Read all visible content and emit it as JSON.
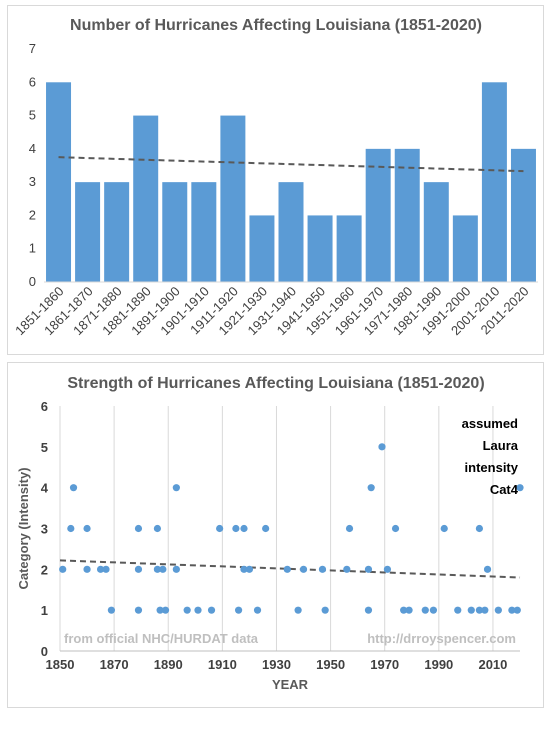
{
  "chart_data": [
    {
      "type": "bar",
      "title": "Number of Hurricanes Affecting Louisiana (1851-2020)",
      "categories": [
        "1851-1860",
        "1861-1870",
        "1871-1880",
        "1881-1890",
        "1891-1900",
        "1901-1910",
        "1911-1920",
        "1921-1930",
        "1931-1940",
        "1941-1950",
        "1951-1960",
        "1961-1970",
        "1971-1980",
        "1981-1990",
        "1991-2000",
        "2001-2010",
        "2011-2020"
      ],
      "values": [
        6,
        3,
        3,
        5,
        3,
        3,
        5,
        2,
        3,
        2,
        2,
        4,
        4,
        3,
        2,
        6,
        4
      ],
      "ylim": [
        0,
        7
      ],
      "yticks": [
        0,
        1,
        2,
        3,
        4,
        5,
        6,
        7
      ],
      "trendline": {
        "style": "dashed",
        "start": 3.75,
        "end": 3.33
      },
      "colors": {
        "bar": "#5b9bd5",
        "trend": "#595959"
      }
    },
    {
      "type": "scatter",
      "title": "Strength of Hurricanes Affecting Louisiana (1851-2020)",
      "xlabel": "YEAR",
      "ylabel": "Category (Intensity)",
      "xlim": [
        1850,
        2020
      ],
      "ylim": [
        0,
        6
      ],
      "xticks": [
        1850,
        1870,
        1890,
        1910,
        1930,
        1950,
        1970,
        1990,
        2010
      ],
      "yticks": [
        0,
        1,
        2,
        3,
        4,
        5,
        6
      ],
      "grid": "x-vertical",
      "points": [
        [
          1851,
          2
        ],
        [
          1854,
          3
        ],
        [
          1855,
          4
        ],
        [
          1860,
          3
        ],
        [
          1860,
          2
        ],
        [
          1865,
          2
        ],
        [
          1867,
          2
        ],
        [
          1869,
          1
        ],
        [
          1879,
          2
        ],
        [
          1879,
          3
        ],
        [
          1879,
          1
        ],
        [
          1886,
          3
        ],
        [
          1886,
          2
        ],
        [
          1887,
          1
        ],
        [
          1888,
          2
        ],
        [
          1889,
          1
        ],
        [
          1893,
          4
        ],
        [
          1893,
          2
        ],
        [
          1897,
          1
        ],
        [
          1901,
          1
        ],
        [
          1906,
          1
        ],
        [
          1909,
          3
        ],
        [
          1915,
          3
        ],
        [
          1916,
          1
        ],
        [
          1918,
          2
        ],
        [
          1918,
          3
        ],
        [
          1920,
          2
        ],
        [
          1923,
          1
        ],
        [
          1926,
          3
        ],
        [
          1934,
          2
        ],
        [
          1938,
          1
        ],
        [
          1940,
          2
        ],
        [
          1947,
          2
        ],
        [
          1948,
          1
        ],
        [
          1956,
          2
        ],
        [
          1957,
          3
        ],
        [
          1964,
          1
        ],
        [
          1964,
          2
        ],
        [
          1965,
          4
        ],
        [
          1969,
          5
        ],
        [
          1971,
          2
        ],
        [
          1974,
          3
        ],
        [
          1977,
          1
        ],
        [
          1979,
          1
        ],
        [
          1985,
          1
        ],
        [
          1988,
          1
        ],
        [
          1992,
          3
        ],
        [
          1997,
          1
        ],
        [
          2002,
          1
        ],
        [
          2005,
          3
        ],
        [
          2005,
          1
        ],
        [
          2007,
          1
        ],
        [
          2008,
          2
        ],
        [
          2012,
          1
        ],
        [
          2017,
          1
        ],
        [
          2019,
          1
        ],
        [
          2020,
          4
        ]
      ],
      "trendline": {
        "style": "dashed",
        "start": 2.22,
        "end": 1.8
      },
      "annotations": [
        "from official NHC/HURDAT data",
        "http://drroyspencer.com"
      ],
      "callout": [
        "assumed",
        "Laura",
        "intensity",
        "Cat4"
      ],
      "colors": {
        "point": "#5b9bd5",
        "trend": "#595959",
        "grid": "#d9d9d9"
      }
    }
  ]
}
